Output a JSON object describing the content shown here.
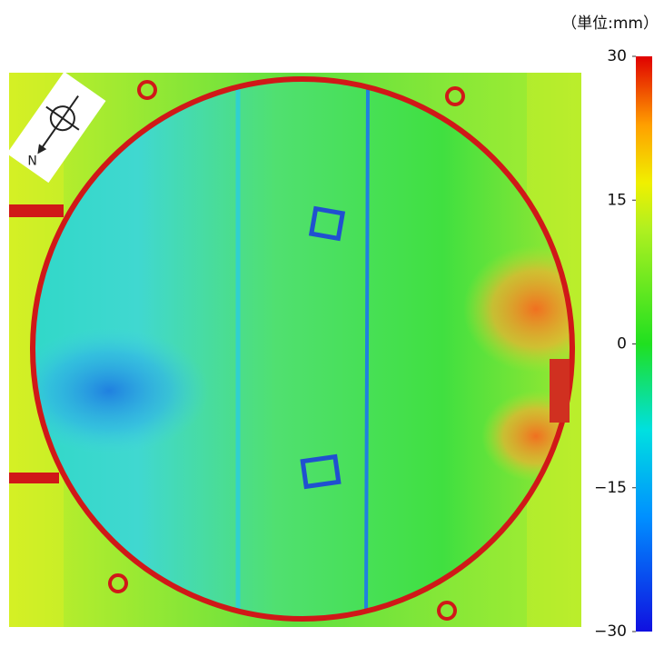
{
  "unit_label": "（単位:mm）",
  "compass": "N",
  "colorbar": {
    "min": -30,
    "max": 30,
    "ticks": [
      30,
      15,
      0,
      {
        "value": -15,
        "label": "−15"
      },
      {
        "value": -30,
        "label": "−30"
      }
    ]
  }
}
